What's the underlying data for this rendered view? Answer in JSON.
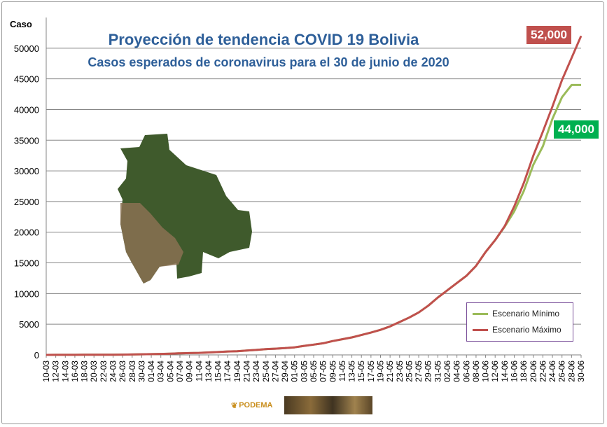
{
  "chart_data": {
    "type": "line",
    "title": "Proyección de tendencia COVID 19 Bolivia",
    "subtitle": "Casos esperados  de coronavirus  para el 30 de junio de 2020",
    "ylabel": "Caso",
    "ylim": [
      0,
      55000
    ],
    "yticks": [
      "0",
      "5000",
      "10000",
      "15000",
      "20000",
      "25000",
      "30000",
      "35000",
      "40000",
      "45000",
      "50000"
    ],
    "x": [
      "10-03",
      "12-03",
      "14-03",
      "16-03",
      "18-03",
      "20-03",
      "22-03",
      "24-03",
      "26-03",
      "28-03",
      "30-03",
      "01-04",
      "03-04",
      "05-04",
      "07-04",
      "09-04",
      "11-04",
      "13-04",
      "15-04",
      "17-04",
      "19-04",
      "21-04",
      "23-04",
      "25-04",
      "27-04",
      "29-04",
      "01-05",
      "03-05",
      "05-05",
      "07-05",
      "09-05",
      "11-05",
      "13-05",
      "15-05",
      "17-05",
      "19-05",
      "21-05",
      "23-05",
      "25-05",
      "27-05",
      "29-05",
      "31-05",
      "02-06",
      "04-06",
      "06-06",
      "08-06",
      "10-06",
      "12-06",
      "14-06",
      "16-06",
      "18-06",
      "20-06",
      "22-06",
      "24-06",
      "26-06",
      "28-06",
      "30-06"
    ],
    "series": [
      {
        "name": "Escenario Mínimo",
        "color": "#9bbb59",
        "values": [
          2,
          10,
          11,
          16,
          19,
          24,
          27,
          32,
          43,
          71,
          97,
          123,
          164,
          210,
          264,
          300,
          330,
          400,
          465,
          564,
          609,
          703,
          807,
          950,
          1014,
          1110,
          1230,
          1470,
          1680,
          1890,
          2260,
          2560,
          2850,
          3240,
          3640,
          4090,
          4640,
          5360,
          6080,
          6930,
          8020,
          9360,
          10530,
          11720,
          12900,
          14500,
          16770,
          18700,
          20900,
          23400,
          26700,
          31000,
          34000,
          38500,
          42000,
          44000,
          44000
        ]
      },
      {
        "name": "Escenario Máximo",
        "color": "#c0504d",
        "values": [
          2,
          10,
          11,
          16,
          19,
          24,
          27,
          32,
          43,
          71,
          97,
          123,
          164,
          210,
          264,
          300,
          330,
          400,
          465,
          564,
          609,
          703,
          807,
          950,
          1014,
          1110,
          1230,
          1470,
          1680,
          1890,
          2260,
          2560,
          2850,
          3240,
          3640,
          4090,
          4640,
          5360,
          6080,
          6930,
          8020,
          9360,
          10530,
          11720,
          12900,
          14500,
          16770,
          18700,
          21000,
          24200,
          28000,
          32500,
          36400,
          40500,
          44800,
          48400,
          52000
        ]
      }
    ],
    "annotations": [
      "52,000",
      "44,000"
    ],
    "grid": true,
    "legend": "bottom-right"
  },
  "footer": {
    "logo_text": "PODEMA"
  }
}
